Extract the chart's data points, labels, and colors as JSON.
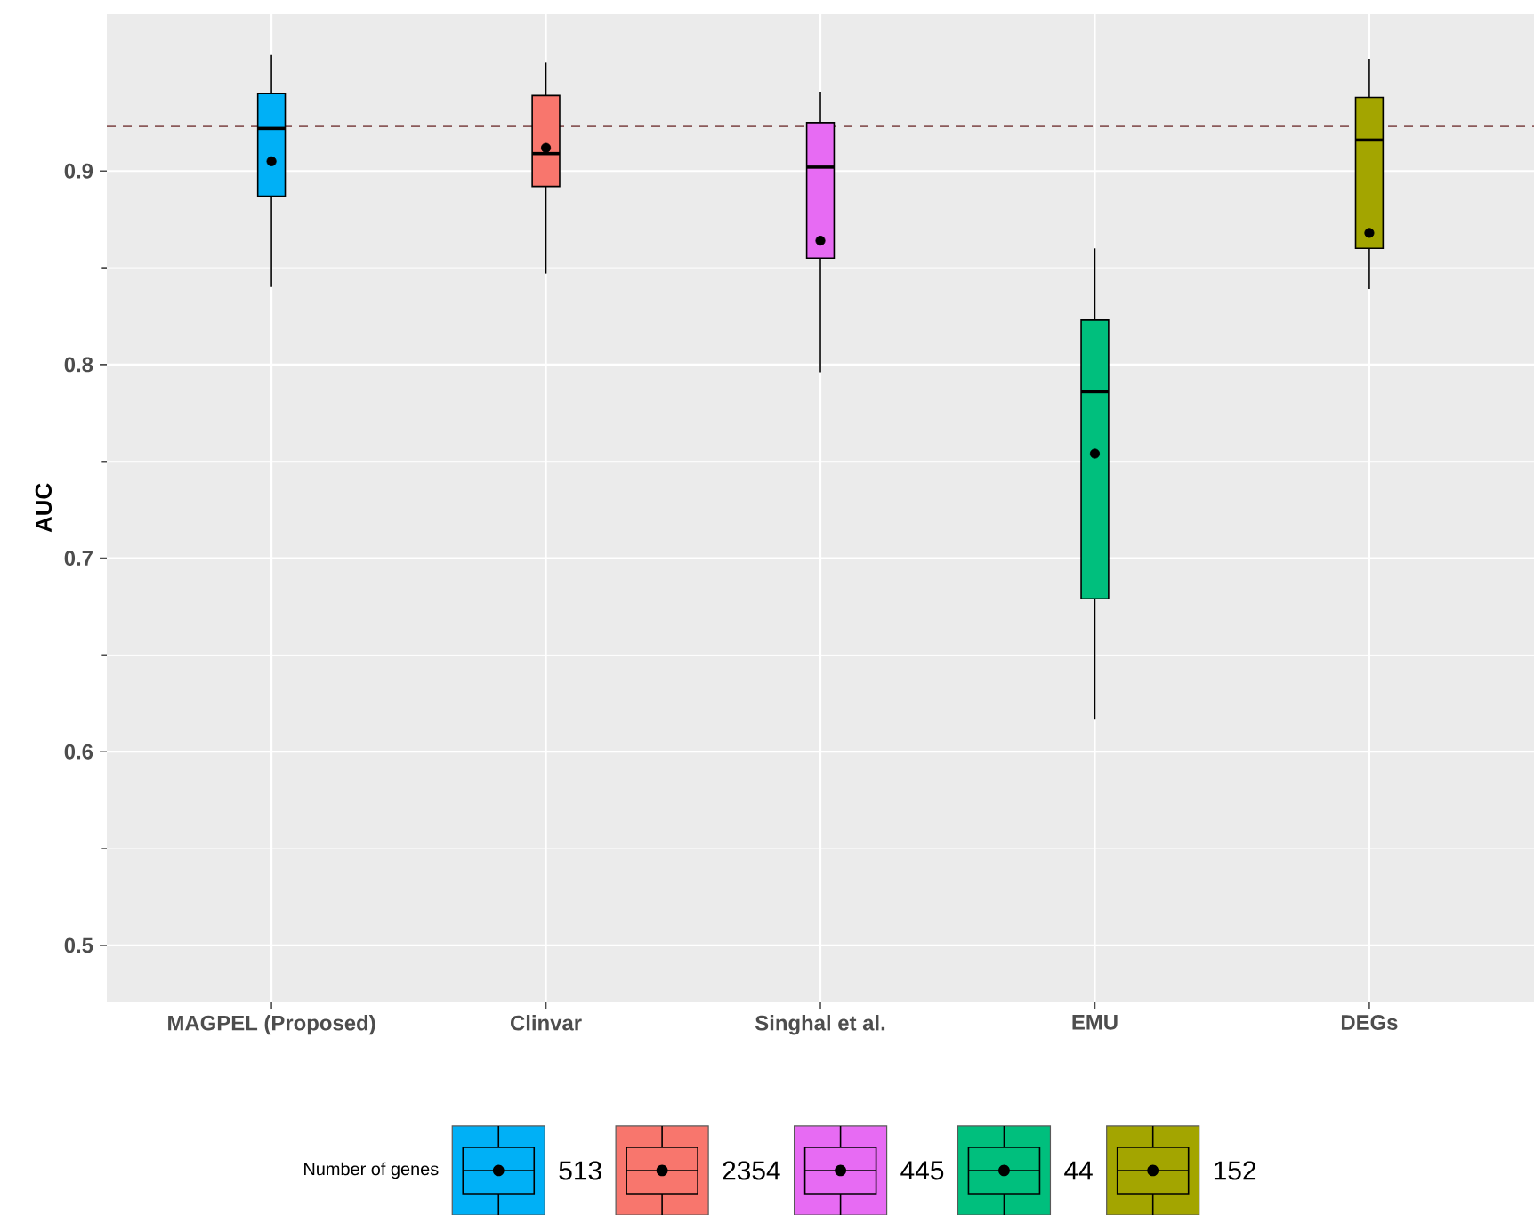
{
  "chart_data": {
    "type": "box",
    "ylabel": "AUC",
    "legend_title": "Number of genes",
    "categories": [
      "MAGPEL (Proposed)",
      "Clinvar",
      "Singhal et al.",
      "EMU",
      "DEGs"
    ],
    "series": [
      {
        "name": "513",
        "color": "#00b0f6",
        "boxes": [
          {
            "low": 0.84,
            "q1": 0.887,
            "median": 0.922,
            "q3": 0.94,
            "high": 0.96,
            "mean": 0.905
          },
          null,
          null,
          null,
          null
        ]
      },
      {
        "name": "2354",
        "color": "#f8766d",
        "boxes": [
          null,
          {
            "low": 0.847,
            "q1": 0.892,
            "median": 0.909,
            "q3": 0.939,
            "high": 0.956,
            "mean": 0.912
          },
          null,
          null,
          null
        ]
      },
      {
        "name": "445",
        "color": "#e76bf3",
        "boxes": [
          null,
          null,
          {
            "low": 0.796,
            "q1": 0.855,
            "median": 0.902,
            "q3": 0.925,
            "high": 0.941,
            "mean": 0.864
          },
          null,
          null
        ]
      },
      {
        "name": "44",
        "color": "#00bf7d",
        "boxes": [
          null,
          null,
          null,
          {
            "low": 0.617,
            "q1": 0.679,
            "median": 0.786,
            "q3": 0.823,
            "high": 0.86,
            "mean": 0.754
          },
          null
        ]
      },
      {
        "name": "152",
        "color": "#a3a500",
        "boxes": [
          null,
          null,
          null,
          null,
          {
            "low": 0.839,
            "q1": 0.86,
            "median": 0.916,
            "q3": 0.938,
            "high": 0.958,
            "mean": 0.868
          }
        ]
      }
    ],
    "ylim": [
      0.471,
      0.981
    ],
    "yticks": [
      0.5,
      0.6,
      0.7,
      0.8,
      0.9
    ],
    "ref_lines": [
      {
        "axis": "y",
        "value": 0.923,
        "color": "#8b5a5a",
        "line_style": "dashed"
      }
    ],
    "grid": true,
    "legend": "bottom"
  }
}
